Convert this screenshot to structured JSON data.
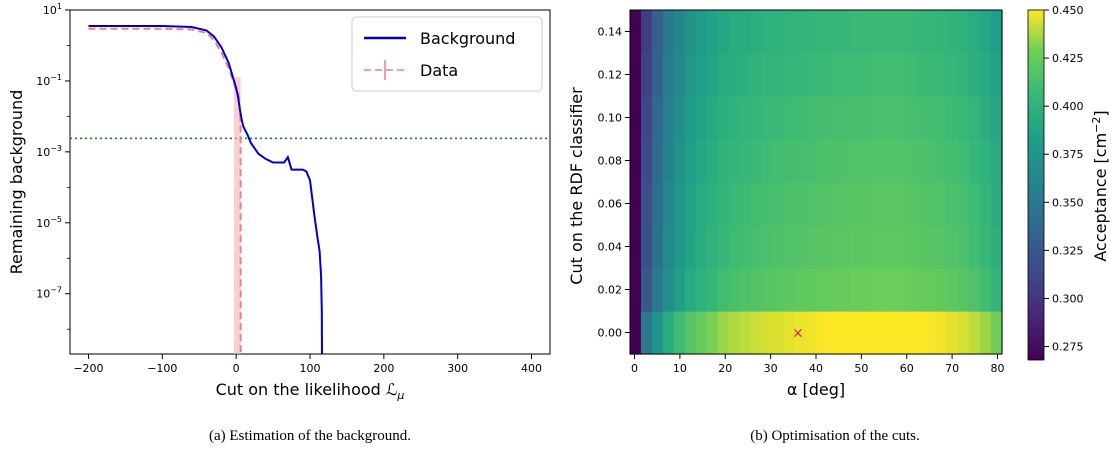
{
  "chart_data": [
    {
      "type": "line",
      "xlabel": "Cut on the likelihood ℒ",
      "xlabel_sub": "μ",
      "ylabel": "Remaining background",
      "xlim": [
        -225,
        425
      ],
      "ylim_log10": [
        -8.7,
        1
      ],
      "yscale": "log",
      "x_ticks": [
        -200,
        -100,
        0,
        100,
        200,
        300,
        400
      ],
      "x_tick_labels": [
        "−200",
        "−100",
        "0",
        "100",
        "200",
        "300",
        "400"
      ],
      "y_ticks_log10": [
        1,
        -1,
        -3,
        -5,
        -7
      ],
      "y_tick_labels": [
        {
          "base": "10",
          "exp": "1"
        },
        {
          "base": "10",
          "exp": "−1"
        },
        {
          "base": "10",
          "exp": "−3"
        },
        {
          "base": "10",
          "exp": "−5"
        },
        {
          "base": "10",
          "exp": "−7"
        }
      ],
      "legend_position": "top-right",
      "series": [
        {
          "name": "Background",
          "color": "#0000cc",
          "style": "solid",
          "x": [
            -200,
            -100,
            -60,
            -40,
            -30,
            -20,
            -10,
            -5,
            0,
            3,
            5,
            8,
            10,
            15,
            20,
            30,
            40,
            50,
            60,
            65,
            70,
            75,
            80,
            85,
            90,
            95,
            100,
            103,
            106,
            110,
            113,
            115,
            116,
            116.2
          ],
          "y_log10": [
            0.55,
            0.55,
            0.52,
            0.42,
            0.25,
            -0.05,
            -0.5,
            -0.85,
            -1.2,
            -1.5,
            -1.8,
            -2.15,
            -2.3,
            -2.5,
            -2.75,
            -3.05,
            -3.2,
            -3.3,
            -3.3,
            -3.3,
            -3.15,
            -3.5,
            -3.5,
            -3.5,
            -3.5,
            -3.55,
            -3.8,
            -4.3,
            -4.8,
            -5.4,
            -5.8,
            -6.5,
            -7.5,
            -8.7
          ]
        },
        {
          "name": "Data",
          "color": "#f08080",
          "style": "dashed",
          "x": [
            -200,
            -100,
            -60,
            -40,
            -30,
            -20,
            -10,
            0,
            3,
            5,
            6,
            6.1
          ],
          "y_log10": [
            0.47,
            0.47,
            0.45,
            0.35,
            0.15,
            -0.2,
            -0.65,
            -1.25,
            -1.3,
            -1.8,
            -2.2,
            -8.7
          ]
        }
      ],
      "reference_line": {
        "y_log10": -2.62,
        "color": "#008000",
        "style": "dotted"
      }
    },
    {
      "type": "heatmap",
      "xlabel": "α [deg]",
      "ylabel": "Cut on the RDF classifier",
      "colorbar_label": "Acceptance [cm",
      "colorbar_label_exp": "−2",
      "colorbar_label_end": "]",
      "xlim": [
        -1,
        81
      ],
      "ylim": [
        -0.01,
        0.15
      ],
      "x_ticks": [
        0,
        10,
        20,
        30,
        40,
        50,
        60,
        70,
        80
      ],
      "y_ticks": [
        "0.00",
        "0.02",
        "0.04",
        "0.06",
        "0.08",
        "0.10",
        "0.12",
        "0.14"
      ],
      "colorbar_range": [
        0.268,
        0.45
      ],
      "colorbar_ticks": [
        "0.275",
        "0.300",
        "0.325",
        "0.350",
        "0.375",
        "0.400",
        "0.425",
        "0.450"
      ],
      "row_levels": [
        0.0,
        0.02,
        0.04,
        0.06,
        0.08,
        0.1,
        0.12,
        0.14
      ],
      "column_profile": [
        0.268,
        0.32,
        0.345,
        0.365,
        0.378,
        0.388,
        0.395,
        0.4,
        0.405,
        0.408,
        0.41,
        0.412,
        0.414,
        0.415,
        0.416,
        0.417,
        0.418,
        0.419,
        0.42,
        0.42,
        0.421,
        0.421,
        0.422,
        0.422,
        0.422,
        0.421,
        0.42,
        0.419,
        0.418,
        0.416,
        0.414,
        0.41,
        0.405,
        0.398
      ],
      "row_offsets": [
        0.03,
        0.005,
        0.0,
        -0.002,
        -0.005,
        -0.008,
        -0.012,
        -0.015
      ],
      "best_point": {
        "x": 36,
        "y": 0.0,
        "marker": "×",
        "color": "#e8152a"
      }
    }
  ],
  "captions": {
    "left": "(a) Estimation of the background.",
    "right": "(b) Optimisation of the cuts."
  },
  "legend": {
    "background_label": "Background",
    "data_label": "Data"
  }
}
